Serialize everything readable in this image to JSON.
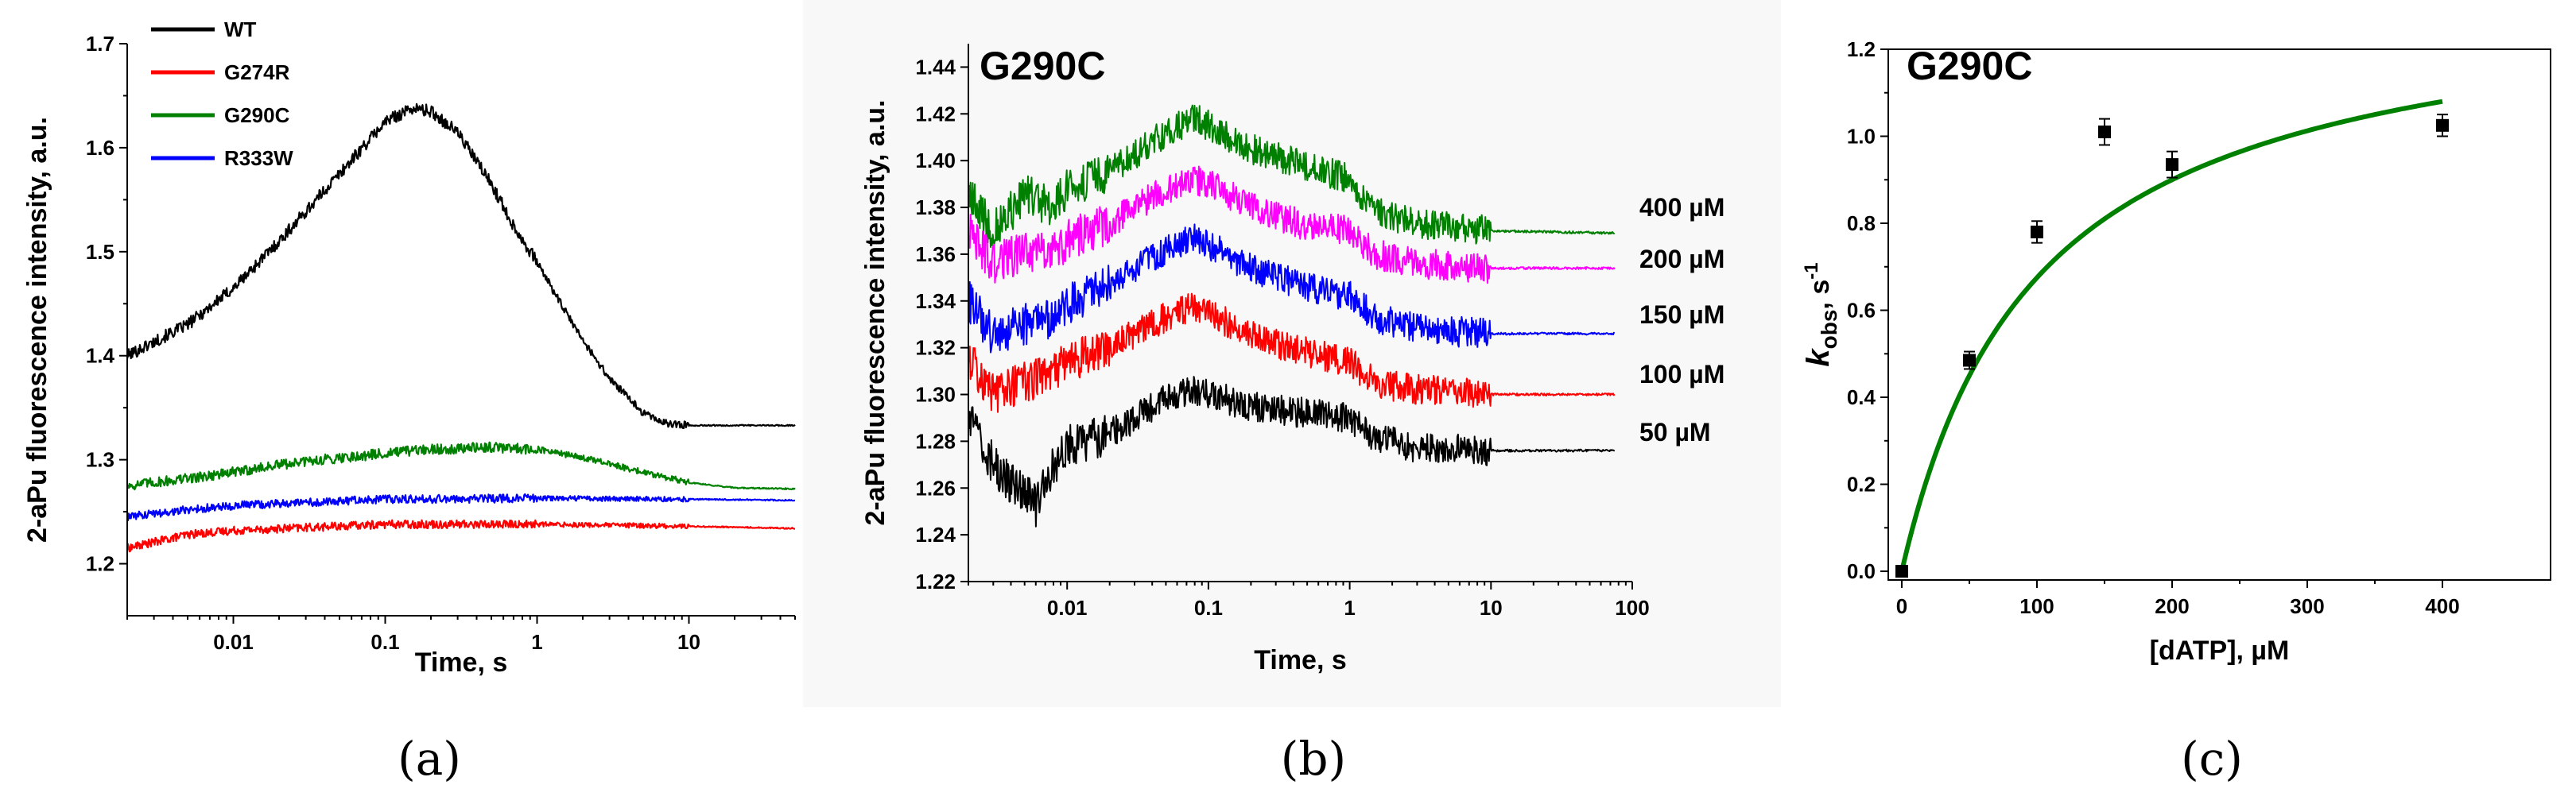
{
  "chart_data": [
    {
      "panel": "a",
      "type": "line",
      "caption": "(a)",
      "title": "",
      "xlabel": "Time, s",
      "ylabel": "2-aPu fluorescence intensity, a.u.",
      "xscale": "log",
      "xlim": [
        0.002,
        50
      ],
      "ylim": [
        1.15,
        1.7
      ],
      "x_ticks": [
        0.01,
        0.1,
        1,
        10
      ],
      "x_tick_labels": [
        "0.01",
        "0.1",
        "1",
        "10"
      ],
      "y_ticks": [
        1.2,
        1.3,
        1.4,
        1.5,
        1.6,
        1.7
      ],
      "y_tick_labels": [
        "1.2",
        "1.3",
        "1.4",
        "1.5",
        "1.6",
        "1.7"
      ],
      "legend_position": "top-left",
      "series": [
        {
          "name": "WT",
          "color": "#000000",
          "x": [
            0.002,
            0.005,
            0.01,
            0.02,
            0.05,
            0.1,
            0.15,
            0.2,
            0.3,
            0.5,
            0.7,
            1,
            1.5,
            2,
            3,
            5,
            7,
            10,
            20,
            50
          ],
          "values": [
            1.4,
            1.43,
            1.465,
            1.51,
            1.575,
            1.625,
            1.638,
            1.635,
            1.615,
            1.565,
            1.525,
            1.49,
            1.445,
            1.415,
            1.378,
            1.345,
            1.335,
            1.333,
            1.333,
            1.333
          ]
        },
        {
          "name": "G274R",
          "color": "#ff0000",
          "x": [
            0.002,
            0.005,
            0.01,
            0.05,
            0.1,
            1,
            10,
            50
          ],
          "values": [
            1.215,
            1.228,
            1.232,
            1.236,
            1.238,
            1.238,
            1.236,
            1.234
          ]
        },
        {
          "name": "G290C",
          "color": "#008000",
          "x": [
            0.002,
            0.005,
            0.01,
            0.02,
            0.05,
            0.1,
            0.2,
            0.5,
            1,
            2,
            5,
            10,
            20,
            50
          ],
          "values": [
            1.275,
            1.282,
            1.288,
            1.295,
            1.302,
            1.306,
            1.31,
            1.312,
            1.31,
            1.302,
            1.288,
            1.278,
            1.273,
            1.272
          ]
        },
        {
          "name": "R333W",
          "color": "#0000ff",
          "x": [
            0.002,
            0.005,
            0.01,
            0.1,
            1,
            10,
            50
          ],
          "values": [
            1.245,
            1.252,
            1.256,
            1.262,
            1.263,
            1.262,
            1.261
          ]
        }
      ]
    },
    {
      "panel": "b",
      "type": "line",
      "caption": "(b)",
      "title": "G290C",
      "xlabel": "Time, s",
      "ylabel": "2-aPu fluorescence intensity, a.u.",
      "xscale": "log",
      "xlim": [
        0.002,
        100
      ],
      "ylim": [
        1.22,
        1.45
      ],
      "x_ticks": [
        0.01,
        0.1,
        1,
        10,
        100
      ],
      "x_tick_labels": [
        "0.01",
        "0.1",
        "1",
        "10",
        "100"
      ],
      "y_ticks": [
        1.22,
        1.24,
        1.26,
        1.28,
        1.3,
        1.32,
        1.34,
        1.36,
        1.38,
        1.4,
        1.42,
        1.44
      ],
      "y_tick_labels": [
        "1.22",
        "1.24",
        "1.26",
        "1.28",
        "1.30",
        "1.32",
        "1.34",
        "1.36",
        "1.38",
        "1.40",
        "1.42",
        "1.44"
      ],
      "legend_position": "right",
      "series": [
        {
          "name": "400 µM",
          "color": "#008000",
          "x": [
            0.002,
            0.003,
            0.005,
            0.008,
            0.01,
            0.02,
            0.05,
            0.08,
            0.1,
            0.2,
            0.5,
            1,
            1.5,
            3,
            10,
            75
          ],
          "values": [
            1.385,
            1.37,
            1.385,
            1.38,
            1.388,
            1.395,
            1.412,
            1.418,
            1.415,
            1.405,
            1.398,
            1.392,
            1.378,
            1.373,
            1.37,
            1.369
          ]
        },
        {
          "name": "200 µM",
          "color": "#ff00ff",
          "x": [
            0.002,
            0.003,
            0.005,
            0.008,
            0.01,
            0.02,
            0.05,
            0.08,
            0.1,
            0.2,
            0.5,
            1,
            1.5,
            3,
            10,
            75
          ],
          "values": [
            1.37,
            1.355,
            1.362,
            1.36,
            1.366,
            1.373,
            1.388,
            1.392,
            1.39,
            1.38,
            1.372,
            1.37,
            1.36,
            1.356,
            1.354,
            1.354
          ]
        },
        {
          "name": "150 µM",
          "color": "#0000ff",
          "x": [
            0.002,
            0.003,
            0.005,
            0.008,
            0.01,
            0.02,
            0.05,
            0.08,
            0.1,
            0.2,
            0.5,
            1,
            1.5,
            3,
            10,
            75
          ],
          "values": [
            1.34,
            1.325,
            1.33,
            1.332,
            1.338,
            1.347,
            1.362,
            1.368,
            1.364,
            1.354,
            1.346,
            1.342,
            1.333,
            1.328,
            1.326,
            1.326
          ]
        },
        {
          "name": "100 µM",
          "color": "#ff0000",
          "x": [
            0.002,
            0.003,
            0.005,
            0.008,
            0.01,
            0.02,
            0.05,
            0.08,
            0.1,
            0.2,
            0.5,
            1,
            1.5,
            3,
            10,
            75
          ],
          "values": [
            1.315,
            1.3,
            1.305,
            1.31,
            1.314,
            1.32,
            1.333,
            1.338,
            1.335,
            1.325,
            1.318,
            1.314,
            1.305,
            1.302,
            1.3,
            1.3
          ]
        },
        {
          "name": "50 µM",
          "color": "#000000",
          "x": [
            0.002,
            0.003,
            0.004,
            0.005,
            0.006,
            0.008,
            0.01,
            0.02,
            0.05,
            0.08,
            0.1,
            0.2,
            0.5,
            1,
            1.5,
            3,
            10,
            75
          ],
          "values": [
            1.29,
            1.27,
            1.262,
            1.258,
            1.252,
            1.27,
            1.278,
            1.283,
            1.298,
            1.302,
            1.3,
            1.295,
            1.292,
            1.29,
            1.282,
            1.277,
            1.276,
            1.276
          ]
        }
      ]
    },
    {
      "panel": "c",
      "type": "scatter",
      "caption": "(c)",
      "title": "G290C",
      "xlabel": "[dATP], µM",
      "ylabel_main": "k",
      "ylabel_sub": "obs",
      "ylabel_rest": ", s",
      "ylabel_sup": "-1",
      "xlim": [
        -10,
        480
      ],
      "ylim": [
        -0.02,
        1.2
      ],
      "x_ticks": [
        0,
        100,
        200,
        300,
        400
      ],
      "x_tick_labels": [
        "0",
        "100",
        "200",
        "300",
        "400"
      ],
      "y_ticks": [
        0.0,
        0.2,
        0.4,
        0.6,
        0.8,
        1.0,
        1.2
      ],
      "y_tick_labels": [
        "0.0",
        "0.2",
        "0.4",
        "0.6",
        "0.8",
        "1.0",
        "1.2"
      ],
      "points": {
        "x": [
          0,
          50,
          100,
          150,
          200,
          400
        ],
        "values": [
          0.0,
          0.485,
          0.78,
          1.01,
          0.935,
          1.025
        ],
        "errors": [
          0.01,
          0.02,
          0.025,
          0.03,
          0.03,
          0.025
        ],
        "color": "#000000"
      },
      "fit": {
        "type": "hyperbolic",
        "kmax": 1.35,
        "Kd": 100,
        "xmax": 400,
        "color": "#008000"
      }
    }
  ]
}
